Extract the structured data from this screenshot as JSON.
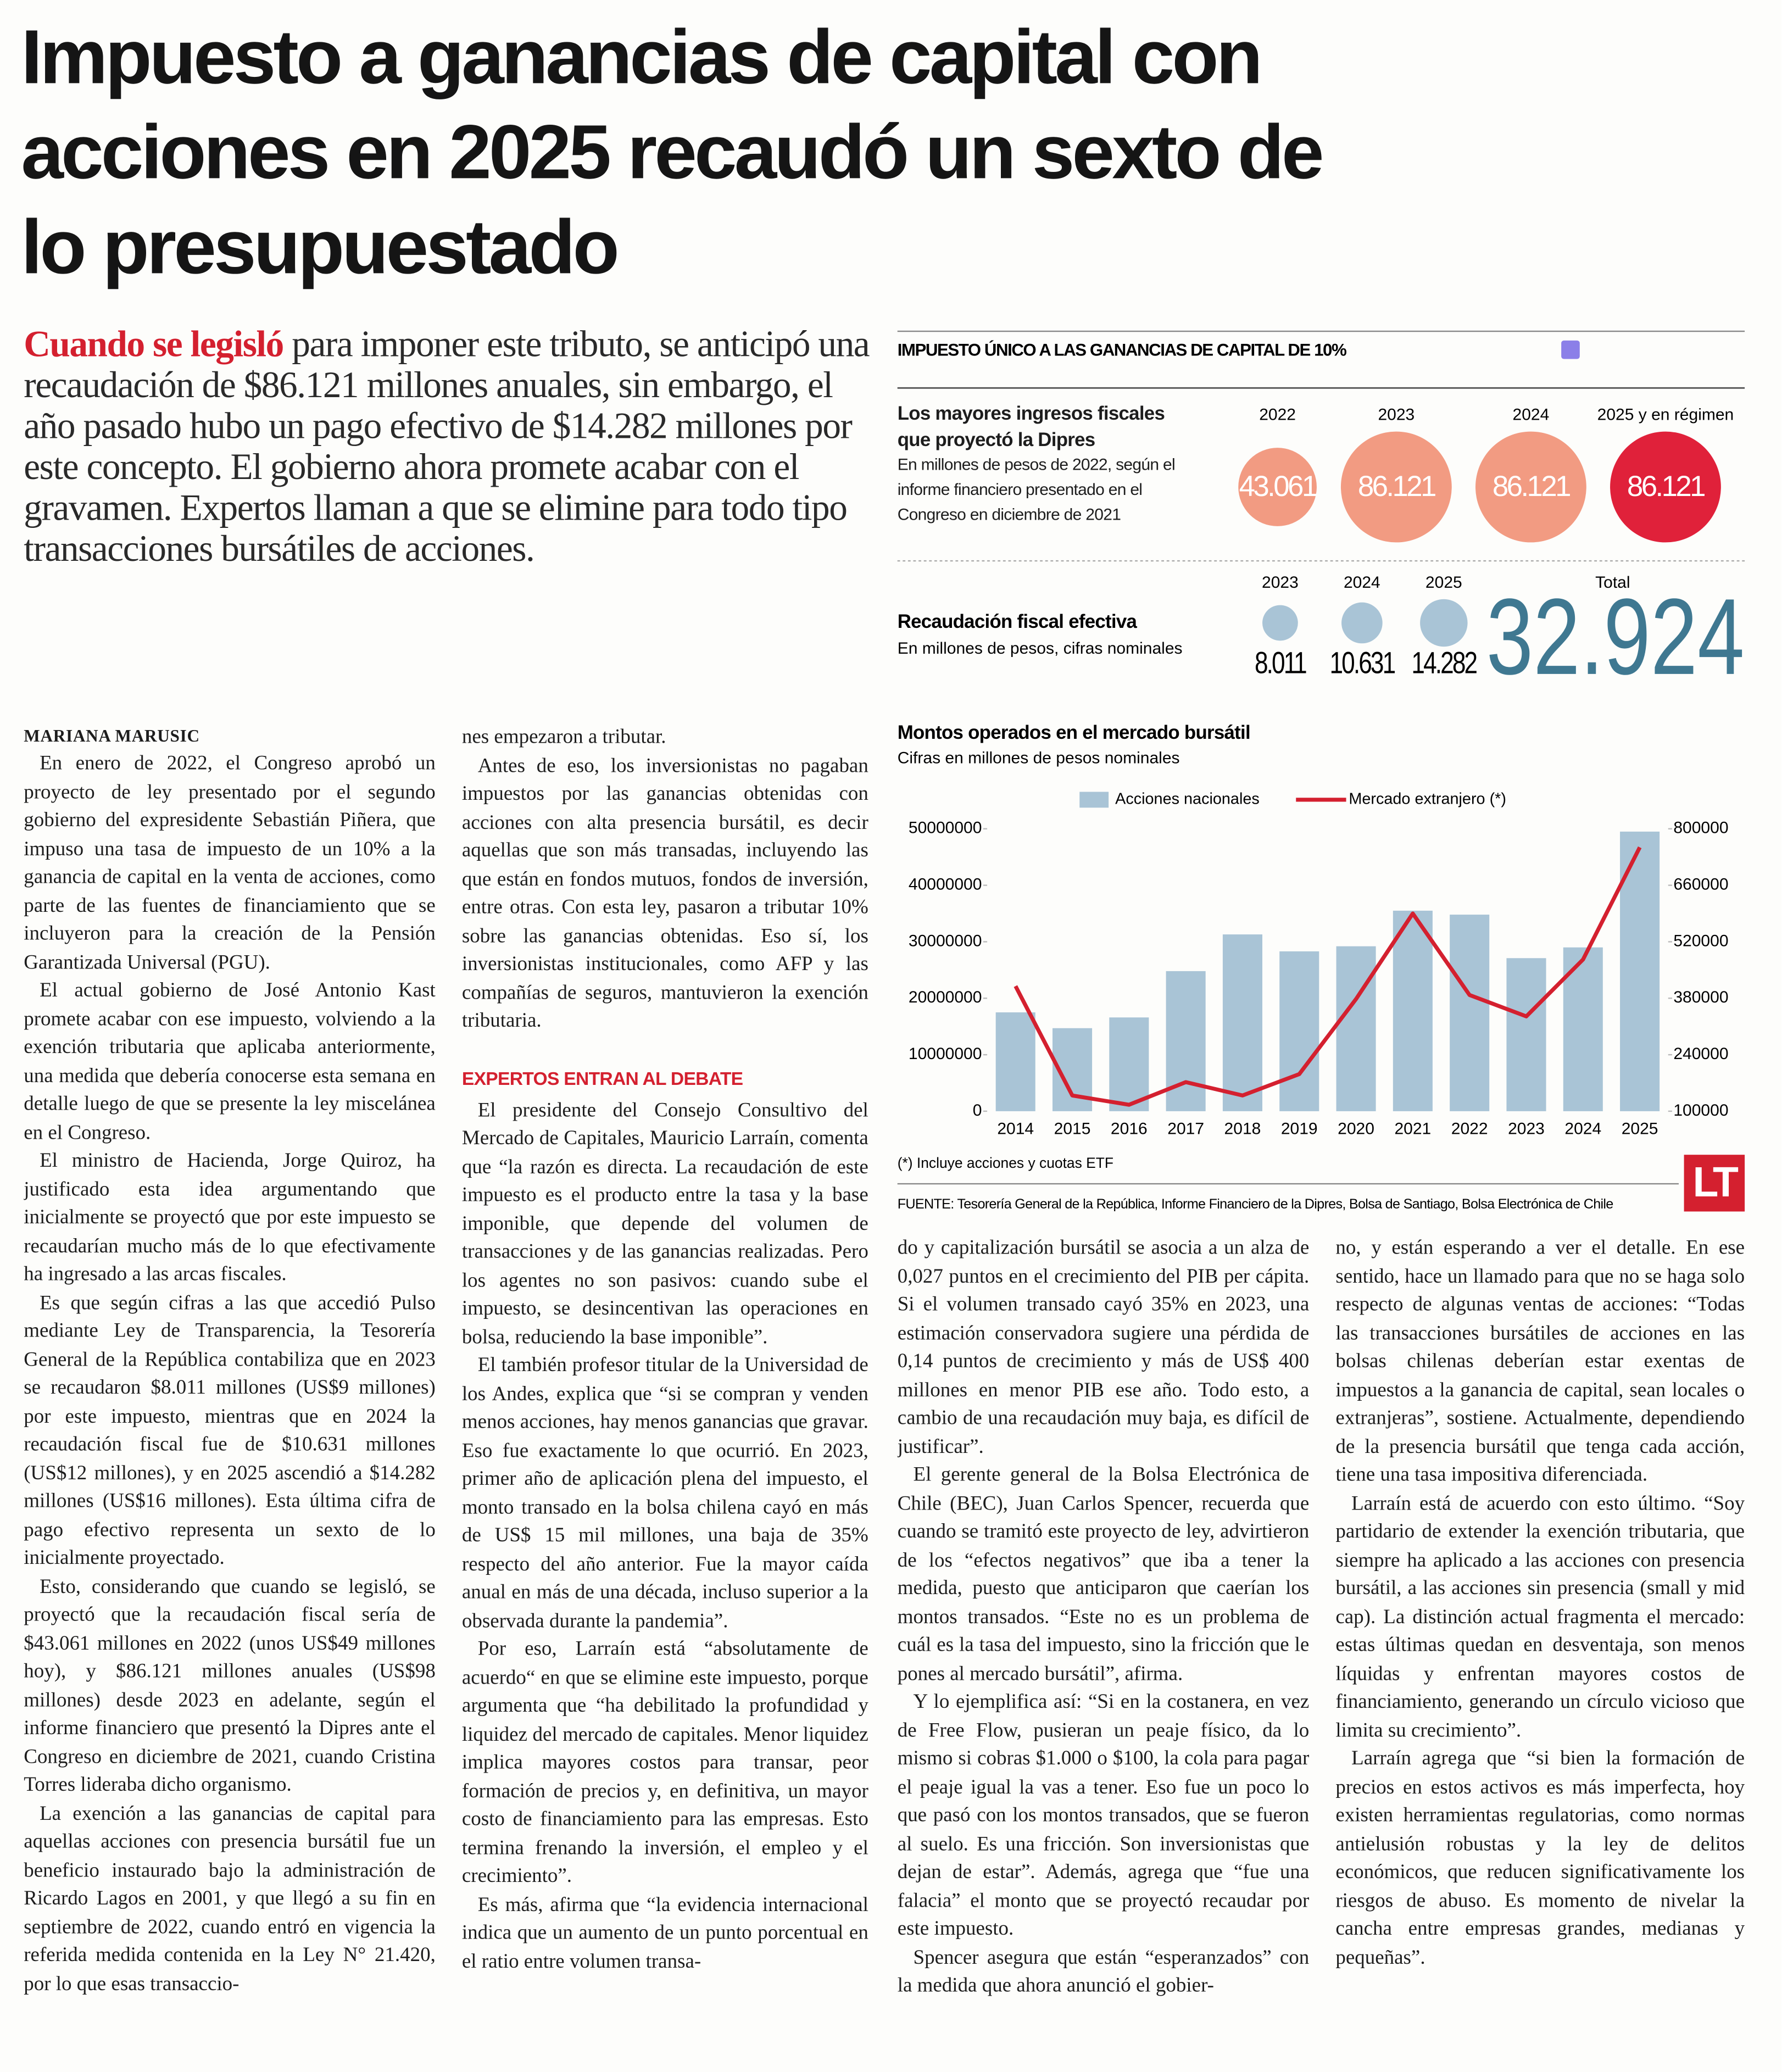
{
  "header": {
    "title": "Impuesto a ganancias de capital con acciones en 2025 recaudó un sexto de lo presupuestado"
  },
  "lede": {
    "highlight": "Cuando se legisló",
    "text": "para imponer este tributo, se anticipó una recaudación de $86.121 millones anuales, sin embargo, el año pasado hubo un pago efectivo de $14.282 millones por este concepto. El gobierno ahora promete acabar con el gravamen. Expertos llaman a que se elimine para todo tipo transacciones bursátiles de acciones."
  },
  "byline": "MARIANA MARUSIC",
  "columns": [
    {
      "paragraphs": [
        "En enero de 2022, el Congreso aprobó un proyecto de ley presentado por el segundo gobierno del expresidente Sebastián Piñera, que impuso una tasa de impuesto de un 10% a la ganancia de capital en la venta de acciones, como parte de las fuentes de financiamiento que se incluyeron para la creación de la Pensión Garantizada Universal (PGU).",
        "El actual gobierno de José Antonio Kast promete acabar con ese impuesto, volviendo a la exención tributaria que aplicaba anteriormente, una medida que debería conocerse esta semana en detalle luego de que se presente la ley miscelánea en el Congreso.",
        "El ministro de Hacienda, Jorge Quiroz, ha justificado esta idea argumentando que inicialmente se proyectó que por este impuesto se recaudarían mucho más de lo que efectivamente ha ingresado a las arcas fiscales.",
        "Es que según cifras a las que accedió Pulso mediante Ley de Transparencia, la Tesorería General de la República contabiliza que en 2023 se recaudaron $8.011 millones (US$9 millones) por este impuesto, mientras que en 2024 la recaudación fiscal fue de $10.631 millones (US$12 millones), y en 2025 ascendió a $14.282 millones (US$16 millones). Esta última cifra de pago efectivo representa un sexto de lo inicialmente proyectado.",
        "Esto, considerando que cuando se legisló, se proyectó que la recaudación fiscal sería de $43.061 millones en 2022 (unos US$49 millones hoy), y $86.121 millones anuales (US$98 millones) desde 2023 en adelante, según el informe financiero que presentó la Dipres ante el Congreso en diciembre de 2021, cuando Cristina Torres lideraba dicho organismo.",
        "La exención a las ganancias de capital para aquellas acciones con presencia bursátil fue un beneficio instaurado bajo la administración de Ricardo Lagos en 2001, y que llegó a su fin en septiembre de 2022, cuando entró en vigencia la referida medida contenida en la Ley N° 21.420, por lo que esas transaccio-"
      ]
    },
    {
      "paragraphs": [
        "nes empezaron a tributar.",
        "Antes de eso, los inversionistas no pagaban impuestos por las ganancias obtenidas con acciones con alta presencia bursátil, es decir aquellas que son más transadas, incluyendo las que están en fondos mutuos, fondos de inversión, entre otras. Con esta ley, pasaron a tributar 10% sobre las ganancias obtenidas. Eso sí, los inversionistas institucionales, como AFP y las compañías de seguros, mantuvieron la exención tributaria."
      ],
      "subhead": "EXPERTOS ENTRAN AL DEBATE",
      "paragraphs_after": [
        "El presidente del Consejo Consultivo del Mercado de Capitales, Mauricio Larraín, comenta que “la razón es directa. La recaudación de este impuesto es el producto entre la tasa y la base imponible, que depende del volumen de transacciones y de las ganancias realizadas. Pero los agentes no son pasivos: cuando sube el impuesto, se desincentivan las operaciones en bolsa, reduciendo la base imponible”.",
        "El también profesor titular de la Universidad de los Andes, explica que “si se compran y venden menos acciones, hay menos ganancias que gravar. Eso fue exactamente lo que ocurrió. En 2023, primer año de aplicación plena del impuesto, el monto transado en la bolsa chilena cayó en más de US$ 15 mil millones, una baja de 35% respecto del año anterior. Fue la mayor caída anual en más de una década, incluso superior a la observada durante la pandemia”.",
        "Por eso, Larraín está “absolutamente de acuerdo“ en que se elimine este impuesto, porque argumenta que “ha debilitado la profundidad y liquidez del mercado de capitales. Menor liquidez implica mayores costos para transar, peor formación de precios y, en definitiva, un mayor costo de financiamiento para las empresas. Esto termina frenando la inversión, el empleo y el crecimiento”.",
        "Es más, afirma que “la evidencia internacional indica que un aumento de un punto porcentual en el ratio entre volumen transa-"
      ]
    },
    {
      "paragraphs": [
        "do y capitalización bursátil se asocia a un alza de 0,027 puntos en el crecimiento del PIB per cápita. Si el volumen transado cayó 35% en 2023, una estimación conservadora sugiere una pérdida de 0,14 puntos de crecimiento y más de US$ 400 millones en menor PIB ese año. Todo esto, a cambio de una recaudación muy baja, es difícil de justificar”.",
        "El gerente general de la Bolsa Electrónica de Chile (BEC), Juan Carlos Spencer, recuerda que cuando se tramitó este proyecto de ley, advirtieron de los “efectos negativos” que iba a tener la medida, puesto que anticiparon que caerían los montos transados. “Este no es un problema de cuál es la tasa del impuesto, sino la fricción que le pones al mercado bursátil”, afirma.",
        "Y lo ejemplifica así: “Si en la costanera, en vez de Free Flow, pusieran un peaje físico, da lo mismo si cobras $1.000 o $100, la cola para pagar el peaje igual la vas a tener. Eso fue un poco lo que pasó con los montos transados, que se fueron al suelo. Es una fricción. Son inversionistas que dejan de estar”. Además, agrega que “fue una falacia” el monto que se proyectó recaudar por este impuesto.",
        "Spencer asegura que están “esperanzados” con la medida que ahora anunció el gobier-"
      ]
    },
    {
      "paragraphs": [
        "no, y están esperando a ver el detalle. En ese sentido, hace un llamado para que no se haga solo respecto de algunas ventas de acciones: “Todas las transacciones bursátiles de acciones en las bolsas chilenas deberían estar exentas de impuestos a la ganancia de capital, sean locales o extranjeras”, sostiene. Actualmente, dependiendo de la presencia bursátil que tenga cada acción, tiene una tasa impositiva diferenciada.",
        "Larraín está de acuerdo con esto último. “Soy partidario de extender la exención tributaria, que siempre ha aplicado a las acciones con presencia bursátil, a las acciones sin presencia (small y mid cap). La distinción actual fragmenta el mercado: estas últimas quedan en desventaja, son menos líquidas y enfrentan mayores costos de financiamiento, generando un círculo vicioso que limita su crecimiento”.",
        "Larraín agrega que “si bien la formación de precios en estos activos es más imperfecta, hoy existen herramientas regulatorias, como normas antielusión robustas y la ley de delitos económicos, que reducen significativamente los riesgos de abuso. Es momento de nivelar la cancha entre empresas grandes, medianas y pequeñas”."
      ]
    }
  ],
  "infographic": {
    "header": "IMPUESTO ÚNICO A LAS GANANCIAS DE CAPITAL DE 10%",
    "projected": {
      "title": "Los mayores ingresos fiscales que proyectó la Dipres",
      "subtitle": "En millones de pesos de 2022, según el informe financiero presentado en el Congreso en diciembre de 2021",
      "years": [
        "2022",
        "2023",
        "2024",
        "2025 y en régimen"
      ],
      "values": [
        {
          "value": 43061,
          "label": "43.061"
        },
        {
          "value": 86121,
          "label": "86.121"
        },
        {
          "value": 86121,
          "label": "86.121"
        },
        {
          "value": 86121,
          "label": "86.121"
        }
      ],
      "colors": [
        "#f29b82",
        "#f29b82",
        "#f29b82",
        "#e0213a"
      ]
    },
    "effective": {
      "title": "Recaudación fiscal efectiva",
      "subtitle": "En millones de pesos, cifras nominales",
      "years": [
        "2023",
        "2024",
        "2025"
      ],
      "values": [
        {
          "value": 8011,
          "label": "8.011"
        },
        {
          "value": 10631,
          "label": "10.631"
        },
        {
          "value": 14282,
          "label": "14.282"
        }
      ],
      "color": "#a9c4d6",
      "total_label": "Total",
      "total": {
        "value": 32924,
        "label": "32.924"
      }
    }
  },
  "chart_data": {
    "type": "combo",
    "title": "Montos operados en el mercado bursátil",
    "subtitle": "Cifras en millones de pesos nominales",
    "categories": [
      "2014",
      "2015",
      "2016",
      "2017",
      "2018",
      "2019",
      "2020",
      "2021",
      "2022",
      "2023",
      "2024",
      "2025"
    ],
    "series": [
      {
        "name": "Acciones nacionales",
        "type": "bar",
        "color": "#a9c4d6",
        "values": [
          17500000,
          14700000,
          16600000,
          24800000,
          31300000,
          28300000,
          29200000,
          35500000,
          34800000,
          27100000,
          29000000,
          49500000
        ]
      },
      {
        "name": "Mercado extranjero (*)",
        "type": "line",
        "axis": "y2",
        "color": "#d4202f",
        "values": [
          410000,
          139000,
          116000,
          172000,
          139000,
          192000,
          378000,
          590000,
          388000,
          335000,
          476000,
          754000
        ]
      }
    ],
    "ylim": [
      0,
      50000000
    ],
    "yticks": [
      0,
      10000000,
      20000000,
      30000000,
      40000000,
      50000000
    ],
    "y2lim": [
      100000,
      800000
    ],
    "y2ticks": [
      100000,
      240000,
      380000,
      520000,
      660000,
      800000
    ],
    "grid": false,
    "note": "(*) Incluye acciones y cuotas ETF",
    "source": "FUENTE: Tesorería General de la República, Informe Financiero de la Dipres, Bolsa de Santiago, Bolsa Electrónica de Chile",
    "logo": "LT"
  }
}
